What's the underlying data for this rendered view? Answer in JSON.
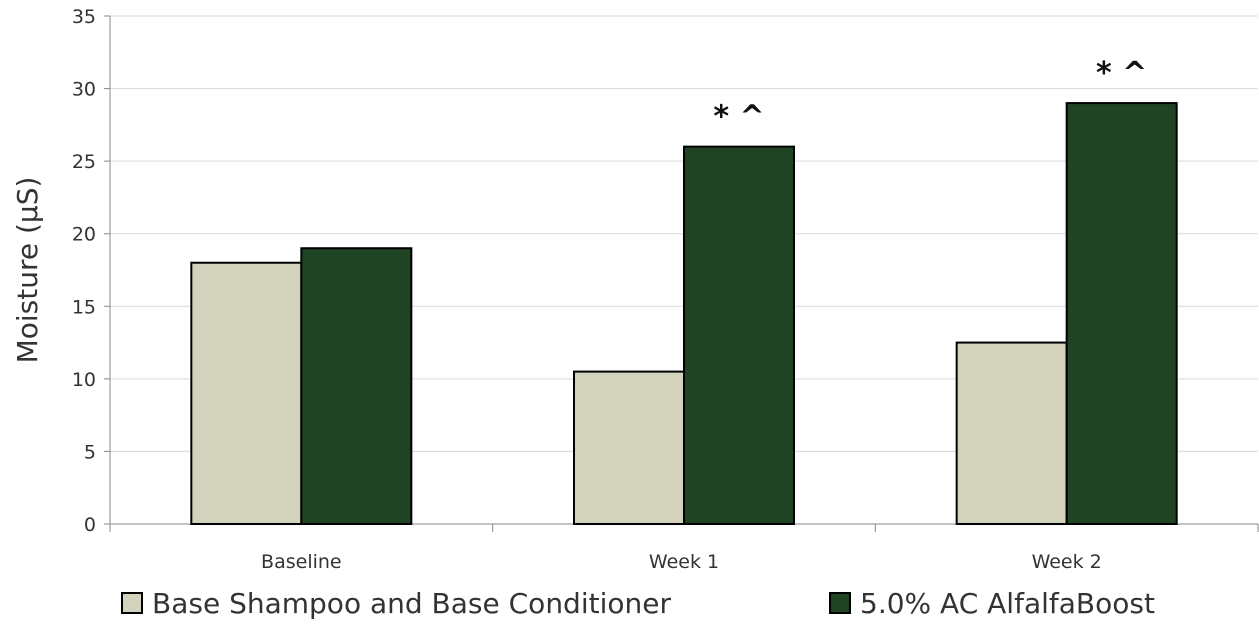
{
  "chart_data": {
    "type": "bar",
    "title": "",
    "xlabel": "",
    "ylabel": "Moisture (µS)",
    "ylim": [
      0,
      35
    ],
    "yticks": [
      0,
      5,
      10,
      15,
      20,
      25,
      30,
      35
    ],
    "categories": [
      "Baseline",
      "Week 1",
      "Week 2"
    ],
    "series": [
      {
        "name": "Base Shampoo and Base Conditioner",
        "color": "#d3d2bc",
        "values": [
          18,
          10.5,
          12.5
        ]
      },
      {
        "name": "5.0% AC AlfalfaBoost",
        "color": "#1e4423",
        "values": [
          19,
          26,
          29
        ]
      }
    ],
    "annotations": [
      {
        "category": "Week 1",
        "series": "5.0% AC AlfalfaBoost",
        "text": "*^"
      },
      {
        "category": "Week 2",
        "series": "5.0% AC AlfalfaBoost",
        "text": "*^"
      }
    ],
    "grid": true,
    "legend_position": "bottom"
  }
}
